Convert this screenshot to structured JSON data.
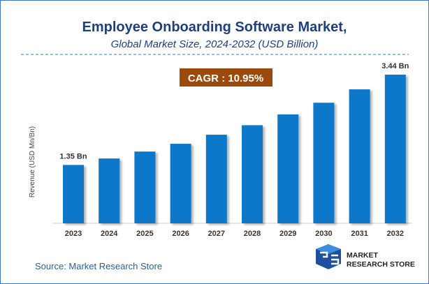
{
  "chart_data": {
    "type": "bar",
    "title": "Employee Onboarding Software Market,",
    "subtitle": "Global Market Size, 2024-2032 (USD Billion)",
    "ylabel": "Revenue (USD Mn/Bn)",
    "xlabel": "",
    "categories": [
      "2023",
      "2024",
      "2025",
      "2026",
      "2027",
      "2028",
      "2029",
      "2030",
      "2031",
      "2032"
    ],
    "values": [
      1.35,
      1.5,
      1.66,
      1.84,
      2.05,
      2.27,
      2.52,
      2.79,
      3.1,
      3.44
    ],
    "data_labels": {
      "0": "1.35 Bn",
      "9": "3.44 Bn"
    },
    "ylim": [
      0,
      3.5
    ],
    "grid": false,
    "annotation": "CAGR : 10.95%",
    "bar_color": "#0a77c9",
    "annotation_color": "#9a4a0c",
    "title_color": "#1f3f7a"
  },
  "source": "Source: Market Research Store",
  "logo": {
    "line1": "MARKET",
    "line2": "RESEARCH STORE"
  }
}
